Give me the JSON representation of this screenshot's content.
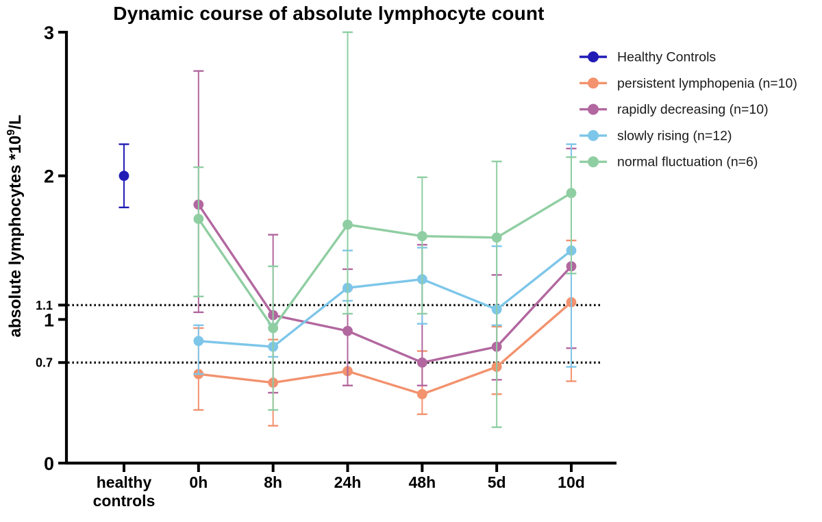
{
  "chart_data": {
    "type": "line",
    "title": "Dynamic course of absolute lymphocyte count",
    "ylabel_parts": {
      "base": "absolute lymphocytes *10",
      "superscript": "9",
      "suffix": "/L"
    },
    "ylabel_text": "absolute lymphocytes *10⁹/L",
    "xlabel": "",
    "ylim": [
      0,
      3
    ],
    "grid": false,
    "legend_position": "top-right",
    "reference_lines": [
      1.1,
      0.7
    ],
    "y_ticks": [
      {
        "value": 0,
        "label": "0",
        "major": true
      },
      {
        "value": 0.7,
        "label": "0.7",
        "major": false
      },
      {
        "value": 1,
        "label": "1",
        "major": true
      },
      {
        "value": 1.1,
        "label": "1.1",
        "major": false
      },
      {
        "value": 2,
        "label": "2",
        "major": true
      },
      {
        "value": 3,
        "label": "3",
        "major": true
      }
    ],
    "x_categories": [
      {
        "label_lines": [
          "healthy",
          "controls"
        ]
      },
      {
        "label_lines": [
          "0h"
        ]
      },
      {
        "label_lines": [
          "8h"
        ]
      },
      {
        "label_lines": [
          "24h"
        ]
      },
      {
        "label_lines": [
          "48h"
        ]
      },
      {
        "label_lines": [
          "5d"
        ]
      },
      {
        "label_lines": [
          "10d"
        ]
      }
    ],
    "series": [
      {
        "name": "Healthy Controls",
        "color": "#211CB5",
        "connect": false,
        "x_indices": [
          0
        ],
        "values": [
          2.0
        ],
        "err_low": [
          1.78
        ],
        "err_high": [
          2.22
        ]
      },
      {
        "name": "persistent lymphopenia (n=10)",
        "color": "#F2926E",
        "connect": true,
        "x_indices": [
          1,
          2,
          3,
          4,
          5,
          6
        ],
        "values": [
          0.62,
          0.56,
          0.64,
          0.48,
          0.67,
          1.12
        ],
        "err_low": [
          0.37,
          0.26,
          0.54,
          0.34,
          0.48,
          0.57
        ],
        "err_high": [
          0.94,
          0.86,
          1.21,
          0.78,
          0.95,
          1.55
        ]
      },
      {
        "name": "rapidly decreasing (n=10)",
        "color": "#B2679F",
        "connect": true,
        "x_indices": [
          1,
          2,
          3,
          4,
          5,
          6
        ],
        "values": [
          1.8,
          1.03,
          0.92,
          0.7,
          0.81,
          1.37
        ],
        "err_low": [
          1.05,
          0.49,
          0.54,
          0.54,
          0.58,
          0.8
        ],
        "err_high": [
          2.73,
          1.59,
          1.35,
          1.52,
          1.31,
          2.19
        ]
      },
      {
        "name": "slowly rising (n=12)",
        "color": "#7DC6E9",
        "connect": true,
        "x_indices": [
          1,
          2,
          3,
          4,
          5,
          6
        ],
        "values": [
          0.85,
          0.81,
          1.22,
          1.28,
          1.07,
          1.48
        ],
        "err_low": [
          0.62,
          0.74,
          1.13,
          0.97,
          0.96,
          0.67
        ],
        "err_high": [
          0.96,
          0.97,
          1.48,
          1.5,
          1.51,
          2.22
        ]
      },
      {
        "name": "normal fluctuation (n=6)",
        "color": "#8FCEA2",
        "connect": true,
        "x_indices": [
          1,
          2,
          3,
          4,
          5,
          6
        ],
        "values": [
          1.7,
          0.94,
          1.66,
          1.58,
          1.57,
          1.88
        ],
        "err_low": [
          1.16,
          0.37,
          1.04,
          1.04,
          0.25,
          1.32
        ],
        "err_high": [
          2.06,
          1.37,
          3.0,
          1.99,
          2.1,
          2.13
        ]
      }
    ]
  }
}
